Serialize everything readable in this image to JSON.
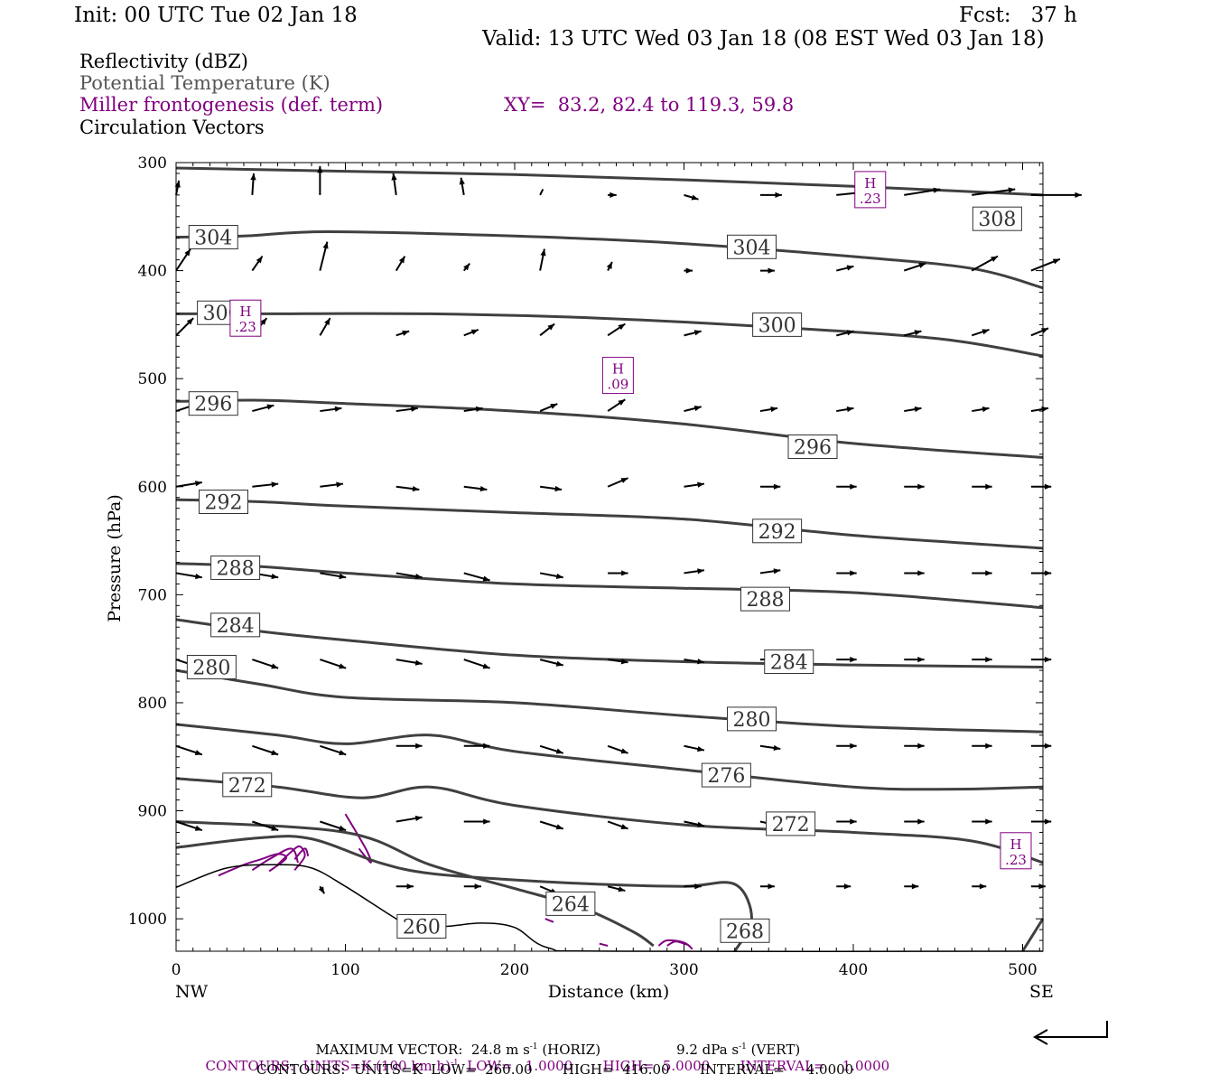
{
  "header": {
    "init": "Init: 00 UTC Tue 02 Jan 18",
    "fcst": "Fcst:   37 h",
    "valid": "Valid: 13 UTC Wed 03 Jan 18 (08 EST Wed 03 Jan 18)"
  },
  "legend": {
    "reflectivity": "Reflectivity (dBZ)",
    "theta": "Potential Temperature (K)",
    "frontogenesis": "Miller frontogenesis (def. term)",
    "xy": "XY=  83.2, 82.4 to 119.3, 59.8",
    "vectors": "Circulation Vectors"
  },
  "colors": {
    "theta": "#404040",
    "frontogenesis": "#800080",
    "text_gray": "#555555",
    "terrain": "#000000"
  },
  "footer": {
    "max_vector": "MAXIMUM VECTOR:  24.8 m s",
    "max_vector_horiz": " (HORIZ)",
    "max_vector_vert_val": "9.2 dPa s",
    "max_vector_vert": " (VERT)",
    "exp": "-1",
    "contours1": "CONTOURS:  UNITS=K (100 km h)",
    "contours1_rest": "  LOW=   1.0000       HIGH=  5.0000       INTERVAL=    1.0000",
    "contours2": "CONTOURS:  UNITS=K  LOW=  260.00       HIGH=  416.00       INTERVAL=     4.0000"
  },
  "chart_data": {
    "type": "cross-section",
    "xlabel": "Distance (km)",
    "ylabel": "Pressure (hPa)",
    "xlim": [
      0,
      512
    ],
    "ylim": [
      1030,
      300
    ],
    "x_ticks": [
      0,
      100,
      200,
      300,
      400,
      500
    ],
    "y_ticks": [
      300,
      400,
      500,
      600,
      700,
      800,
      900,
      1000
    ],
    "x_end_labels": {
      "left": "NW",
      "right": "SE"
    },
    "theta_contours": [
      {
        "label": "308",
        "points": [
          [
            0,
            305
          ],
          [
            100,
            308
          ],
          [
            200,
            311
          ],
          [
            300,
            316
          ],
          [
            400,
            322
          ],
          [
            512,
            330
          ]
        ],
        "labels_at": [
          [
            485,
            352
          ]
        ]
      },
      {
        "label": "304",
        "points": [
          [
            0,
            369
          ],
          [
            40,
            368
          ],
          [
            90,
            364
          ],
          [
            200,
            368
          ],
          [
            300,
            375
          ],
          [
            400,
            387
          ],
          [
            470,
            398
          ],
          [
            512,
            416
          ]
        ],
        "labels_at": [
          [
            22,
            369
          ],
          [
            340,
            378
          ]
        ]
      },
      {
        "label": "300",
        "points": [
          [
            0,
            440
          ],
          [
            50,
            440
          ],
          [
            150,
            440
          ],
          [
            250,
            444
          ],
          [
            350,
            452
          ],
          [
            450,
            463
          ],
          [
            512,
            479
          ]
        ],
        "labels_at": [
          [
            27,
            439
          ],
          [
            355,
            450
          ]
        ]
      },
      {
        "label": "296",
        "points": [
          [
            0,
            521
          ],
          [
            50,
            520
          ],
          [
            100,
            523
          ],
          [
            200,
            530
          ],
          [
            300,
            542
          ],
          [
            400,
            560
          ],
          [
            512,
            573
          ]
        ],
        "labels_at": [
          [
            22,
            523
          ],
          [
            376,
            563
          ]
        ]
      },
      {
        "label": "292",
        "points": [
          [
            0,
            612
          ],
          [
            50,
            614
          ],
          [
            100,
            618
          ],
          [
            200,
            624
          ],
          [
            300,
            630
          ],
          [
            400,
            645
          ],
          [
            512,
            657
          ]
        ],
        "labels_at": [
          [
            28,
            614
          ],
          [
            355,
            641
          ]
        ]
      },
      {
        "label": "288",
        "points": [
          [
            0,
            671
          ],
          [
            50,
            674
          ],
          [
            100,
            680
          ],
          [
            200,
            690
          ],
          [
            300,
            694
          ],
          [
            400,
            698
          ],
          [
            512,
            712
          ]
        ],
        "labels_at": [
          [
            35,
            675
          ],
          [
            348,
            704
          ]
        ]
      },
      {
        "label": "284",
        "points": [
          [
            0,
            723
          ],
          [
            50,
            734
          ],
          [
            100,
            742
          ],
          [
            200,
            756
          ],
          [
            300,
            762
          ],
          [
            400,
            765
          ],
          [
            512,
            767
          ]
        ],
        "labels_at": [
          [
            35,
            728
          ],
          [
            362,
            762
          ]
        ]
      },
      {
        "label": "280",
        "points": [
          [
            0,
            770
          ],
          [
            50,
            783
          ],
          [
            100,
            795
          ],
          [
            200,
            800
          ],
          [
            300,
            812
          ],
          [
            400,
            822
          ],
          [
            512,
            827
          ]
        ],
        "labels_at": [
          [
            21,
            767
          ],
          [
            340,
            815
          ]
        ]
      },
      {
        "label": "276",
        "points": [
          [
            0,
            820
          ],
          [
            60,
            830
          ],
          [
            100,
            838
          ],
          [
            150,
            830
          ],
          [
            200,
            845
          ],
          [
            300,
            862
          ],
          [
            400,
            878
          ],
          [
            460,
            880
          ],
          [
            512,
            878
          ]
        ],
        "labels_at": [
          [
            325,
            867
          ]
        ]
      },
      {
        "label": "272",
        "points": [
          [
            0,
            870
          ],
          [
            60,
            878
          ],
          [
            110,
            888
          ],
          [
            150,
            878
          ],
          [
            200,
            895
          ],
          [
            300,
            913
          ],
          [
            400,
            920
          ],
          [
            470,
            928
          ],
          [
            512,
            948
          ]
        ],
        "labels_at": [
          [
            42,
            876
          ],
          [
            363,
            912
          ]
        ]
      },
      {
        "label": "268",
        "points": [
          [
            0,
            934
          ],
          [
            50,
            925
          ],
          [
            80,
            926
          ],
          [
            120,
            948
          ],
          [
            150,
            958
          ],
          [
            200,
            964
          ],
          [
            250,
            968
          ],
          [
            300,
            970
          ],
          [
            330,
            968
          ],
          [
            340,
            1000
          ],
          [
            330,
            1030
          ]
        ],
        "labels_at": [
          [
            336,
            1011
          ]
        ]
      },
      {
        "label": "264",
        "points": [
          [
            0,
            910
          ],
          [
            100,
            920
          ],
          [
            150,
            950
          ],
          [
            200,
            972
          ],
          [
            240,
            990
          ],
          [
            270,
            1012
          ],
          [
            282,
            1025
          ]
        ],
        "labels_at": [
          [
            233,
            986
          ]
        ]
      },
      {
        "label": "260",
        "points": [
          [
            145,
            1007
          ]
        ],
        "labels_at": [
          [
            145,
            1007
          ]
        ]
      },
      {
        "label": "",
        "points": [
          [
            500,
            1030
          ],
          [
            512,
            1000
          ]
        ],
        "labels_at": []
      }
    ],
    "terrain": [
      [
        0,
        971
      ],
      [
        30,
        953
      ],
      [
        60,
        950
      ],
      [
        80,
        953
      ],
      [
        100,
        970
      ],
      [
        130,
        1000
      ],
      [
        140,
        1007
      ],
      [
        160,
        1007
      ],
      [
        180,
        1004
      ],
      [
        200,
        1008
      ],
      [
        220,
        1027
      ],
      [
        260,
        1030
      ],
      [
        512,
        1030
      ]
    ],
    "fronto_maxima": [
      {
        "label": "H",
        "value": ".23",
        "x": 410,
        "p": 325
      },
      {
        "label": "H",
        "value": ".23",
        "x": 41,
        "p": 444
      },
      {
        "label": "H",
        "value": ".09",
        "x": 261,
        "p": 497
      },
      {
        "label": "H",
        "value": ".23",
        "x": 496,
        "p": 937
      }
    ],
    "fronto_contours": [
      [
        [
          25,
          960
        ],
        [
          40,
          950
        ],
        [
          50,
          945
        ],
        [
          60,
          940
        ],
        [
          65,
          944
        ],
        [
          55,
          956
        ]
      ],
      [
        [
          45,
          955
        ],
        [
          55,
          945
        ],
        [
          68,
          935
        ],
        [
          72,
          948
        ]
      ],
      [
        [
          60,
          950
        ],
        [
          68,
          938
        ],
        [
          73,
          933
        ],
        [
          76,
          942
        ],
        [
          70,
          955
        ]
      ],
      [
        [
          70,
          945
        ],
        [
          76,
          935
        ],
        [
          78,
          942
        ]
      ],
      [
        [
          100,
          903
        ],
        [
          112,
          935
        ],
        [
          115,
          948
        ],
        [
          108,
          935
        ]
      ],
      [
        [
          285,
          1025
        ],
        [
          290,
          1020
        ],
        [
          300,
          1022
        ],
        [
          305,
          1028
        ]
      ],
      [
        [
          290,
          1025
        ],
        [
          295,
          1021
        ],
        [
          302,
          1024
        ]
      ],
      [
        [
          218,
          1000
        ],
        [
          223,
          1003
        ]
      ],
      [
        [
          250,
          1023
        ],
        [
          255,
          1025
        ]
      ]
    ],
    "vectors_grid_x": [
      0,
      45,
      85,
      130,
      170,
      215,
      255,
      300,
      345,
      390,
      430,
      470,
      505
    ],
    "vectors": [
      {
        "p": 330,
        "u": [
          0.2,
          0.1,
          0.0,
          -0.2,
          -0.2,
          0.2,
          0.6,
          1.0,
          1.5,
          2.0,
          2.5,
          3.0,
          3.5
        ],
        "w": [
          1.0,
          1.5,
          2.0,
          1.5,
          1.2,
          0.4,
          0.0,
          -0.3,
          0.0,
          0.2,
          0.4,
          0.4,
          0.0
        ]
      },
      {
        "p": 400,
        "u": [
          1.0,
          0.7,
          0.5,
          0.6,
          0.4,
          0.3,
          0.3,
          0.6,
          1.0,
          1.2,
          1.5,
          1.8,
          2.0
        ],
        "w": [
          1.5,
          1.0,
          2.0,
          1.0,
          0.5,
          1.5,
          0.6,
          0.0,
          0.0,
          0.3,
          0.5,
          1.0,
          0.8
        ]
      },
      {
        "p": 460,
        "u": [
          1.2,
          1.0,
          0.7,
          0.9,
          1.0,
          1.0,
          1.2,
          1.2,
          1.2,
          1.2,
          1.2,
          1.2,
          1.2
        ],
        "w": [
          1.2,
          1.2,
          1.2,
          0.3,
          0.4,
          0.8,
          0.8,
          0.3,
          0.2,
          0.3,
          0.3,
          0.4,
          0.5
        ]
      },
      {
        "p": 530,
        "u": [
          1.5,
          1.5,
          1.5,
          1.5,
          1.3,
          1.2,
          1.2,
          1.2,
          1.2,
          1.2,
          1.2,
          1.2,
          1.2
        ],
        "w": [
          0.5,
          0.4,
          0.2,
          0.2,
          0.2,
          0.5,
          0.8,
          0.3,
          0.2,
          0.2,
          0.2,
          0.2,
          0.2
        ]
      },
      {
        "p": 600,
        "u": [
          1.8,
          1.8,
          1.6,
          1.6,
          1.6,
          1.5,
          1.4,
          1.4,
          1.4,
          1.4,
          1.4,
          1.4,
          1.4
        ],
        "w": [
          0.3,
          0.2,
          0.2,
          -0.2,
          -0.2,
          -0.2,
          0.6,
          0.2,
          0.0,
          0.0,
          0.0,
          0.0,
          0.0
        ]
      },
      {
        "p": 680,
        "u": [
          1.8,
          1.8,
          1.8,
          1.8,
          1.8,
          1.6,
          1.4,
          1.4,
          1.4,
          1.4,
          1.4,
          1.4,
          1.4
        ],
        "w": [
          -0.3,
          -0.3,
          -0.3,
          -0.3,
          -0.5,
          -0.3,
          0.0,
          0.2,
          0.2,
          0.0,
          0.0,
          0.0,
          0.0
        ]
      },
      {
        "p": 760,
        "u": [
          1.8,
          1.8,
          1.8,
          1.8,
          1.8,
          1.6,
          1.4,
          1.4,
          1.4,
          1.4,
          1.4,
          1.4,
          1.4
        ],
        "w": [
          -0.6,
          -0.6,
          -0.6,
          -0.3,
          -0.6,
          -0.4,
          -0.2,
          -0.2,
          0.0,
          0.0,
          0.0,
          0.0,
          0.0
        ]
      },
      {
        "p": 840,
        "u": [
          1.8,
          1.8,
          1.8,
          1.8,
          1.8,
          1.6,
          1.4,
          1.4,
          1.4,
          1.4,
          1.4,
          1.4,
          1.4
        ],
        "w": [
          -0.6,
          -0.6,
          -0.6,
          0.0,
          0.0,
          -0.5,
          -0.5,
          -0.3,
          -0.2,
          0.0,
          0.0,
          0.0,
          0.0
        ]
      },
      {
        "p": 910,
        "u": [
          1.8,
          1.8,
          1.8,
          1.8,
          1.8,
          1.6,
          1.4,
          1.4,
          1.4,
          1.4,
          1.4,
          1.4,
          1.4
        ],
        "w": [
          -0.6,
          -0.6,
          -0.6,
          0.3,
          0.0,
          -0.5,
          -0.5,
          -0.3,
          -0.3,
          0.0,
          0.0,
          0.0,
          0.0
        ]
      },
      {
        "p": 970,
        "u": [
          0.0,
          0.0,
          0.3,
          1.2,
          1.2,
          1.2,
          1.2,
          1.2,
          1.0,
          1.0,
          1.0,
          1.0,
          1.0
        ],
        "w": [
          0.0,
          0.0,
          -0.5,
          0.0,
          0.0,
          -0.5,
          -0.3,
          0.0,
          0.0,
          0.0,
          0.0,
          0.0,
          0.0
        ]
      }
    ]
  }
}
